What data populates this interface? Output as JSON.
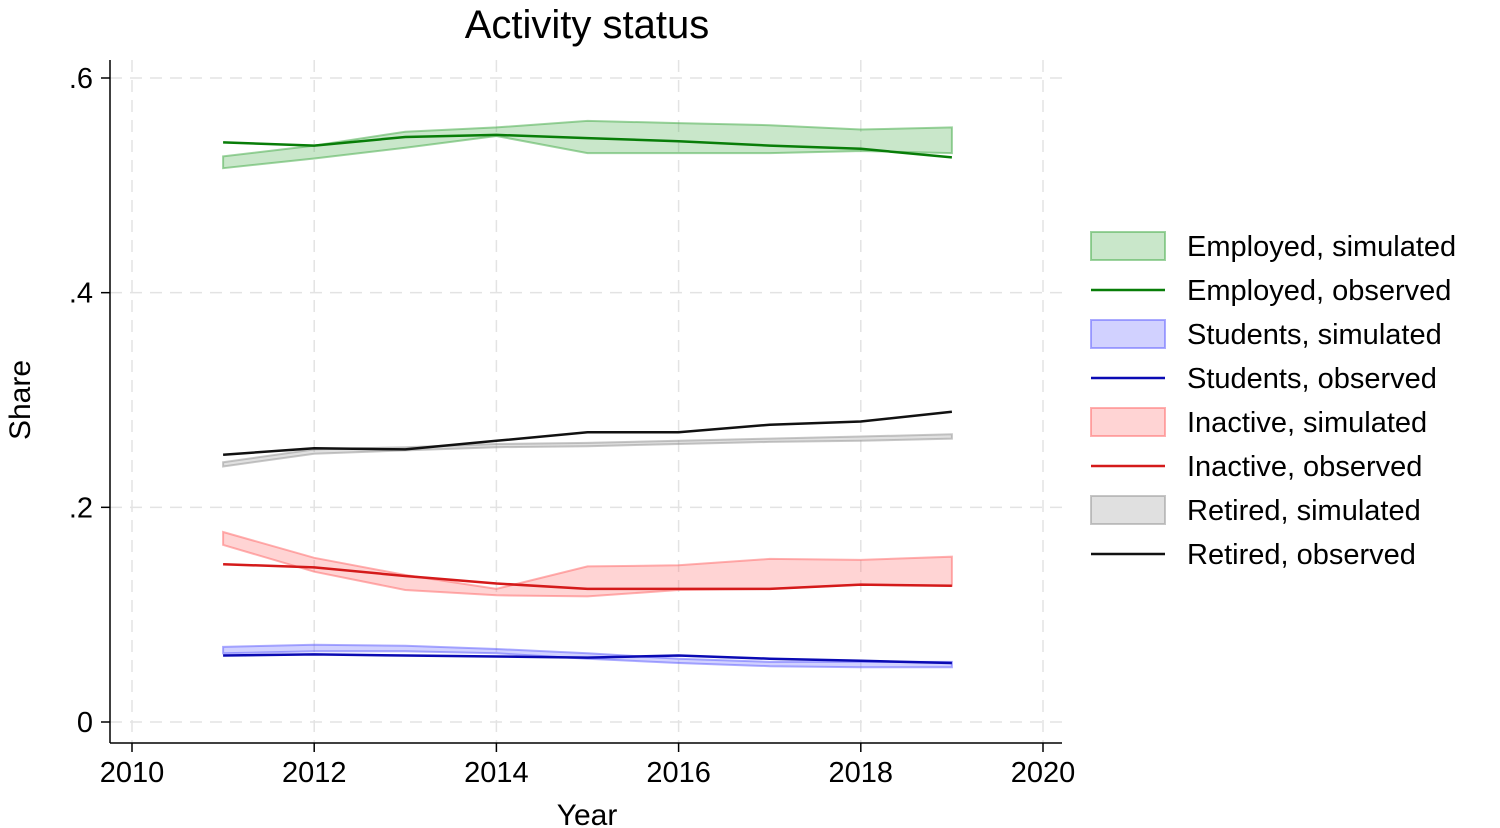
{
  "chart_data": {
    "type": "area",
    "title": "Activity status",
    "xlabel": "Year",
    "ylabel": "Share",
    "xlim": [
      2010,
      2020
    ],
    "ylim": [
      0,
      0.6
    ],
    "x_ticks": [
      2010,
      2012,
      2014,
      2016,
      2018,
      2020
    ],
    "x_tick_labels": [
      "2010",
      "2012",
      "2014",
      "2016",
      "2018",
      "2020"
    ],
    "y_ticks": [
      0,
      0.2,
      0.4,
      0.6
    ],
    "y_tick_labels": [
      "0",
      ".2",
      ".4",
      ".6"
    ],
    "grid": true,
    "legend_position": "right",
    "x": [
      2011,
      2012,
      2013,
      2014,
      2015,
      2016,
      2017,
      2018,
      2019
    ],
    "series": [
      {
        "name": "Employed, simulated",
        "kind": "band",
        "color": "#4caf50",
        "lower": [
          0.516,
          0.525,
          0.535,
          0.546,
          0.53,
          0.53,
          0.53,
          0.532,
          0.53
        ],
        "upper": [
          0.527,
          0.537,
          0.55,
          0.554,
          0.56,
          0.558,
          0.556,
          0.552,
          0.554
        ]
      },
      {
        "name": "Employed, observed",
        "kind": "line",
        "color": "#087d08",
        "values": [
          0.54,
          0.537,
          0.545,
          0.547,
          0.544,
          0.541,
          0.537,
          0.534,
          0.526
        ]
      },
      {
        "name": "Students, simulated",
        "kind": "band",
        "color": "#6666ff",
        "lower": [
          0.064,
          0.066,
          0.066,
          0.064,
          0.059,
          0.055,
          0.052,
          0.051,
          0.051
        ],
        "upper": [
          0.07,
          0.072,
          0.071,
          0.068,
          0.064,
          0.059,
          0.056,
          0.056,
          0.056
        ]
      },
      {
        "name": "Students, observed",
        "kind": "line",
        "color": "#0a0ab4",
        "values": [
          0.062,
          0.063,
          0.062,
          0.061,
          0.06,
          0.062,
          0.059,
          0.057,
          0.055
        ]
      },
      {
        "name": "Inactive, simulated",
        "kind": "band",
        "color": "#ff7070",
        "lower": [
          0.165,
          0.14,
          0.123,
          0.118,
          0.117,
          0.123,
          0.124,
          0.128,
          0.127
        ],
        "upper": [
          0.177,
          0.153,
          0.137,
          0.124,
          0.145,
          0.146,
          0.152,
          0.151,
          0.154
        ]
      },
      {
        "name": "Inactive, observed",
        "kind": "line",
        "color": "#d41a1a",
        "values": [
          0.147,
          0.144,
          0.136,
          0.129,
          0.124,
          0.124,
          0.124,
          0.128,
          0.127
        ]
      },
      {
        "name": "Retired, simulated",
        "kind": "band",
        "color": "#999999",
        "lower": [
          0.238,
          0.25,
          0.253,
          0.256,
          0.257,
          0.259,
          0.261,
          0.262,
          0.264
        ],
        "upper": [
          0.242,
          0.254,
          0.256,
          0.259,
          0.26,
          0.262,
          0.264,
          0.266,
          0.268
        ]
      },
      {
        "name": "Retired, observed",
        "kind": "line",
        "color": "#111111",
        "values": [
          0.249,
          0.255,
          0.254,
          0.262,
          0.27,
          0.27,
          0.277,
          0.28,
          0.289
        ]
      }
    ]
  }
}
